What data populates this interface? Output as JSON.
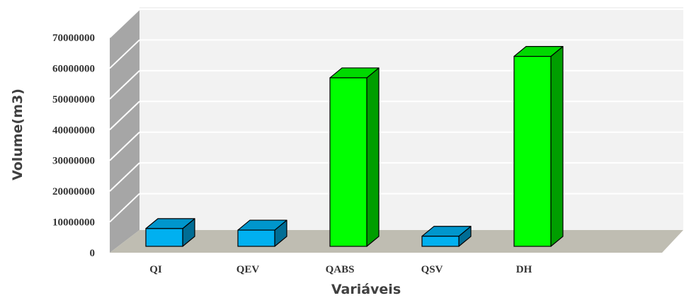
{
  "chart_data": {
    "type": "bar",
    "style": "3d-column",
    "title": "",
    "xlabel": "Variáveis",
    "ylabel": "Volume(m3)",
    "categories": [
      "QI",
      "QEV",
      "QABS",
      "QSV",
      "DH"
    ],
    "values": [
      5800000,
      5300000,
      55000000,
      3300000,
      62000000
    ],
    "bar_colors": [
      "#00b0f0",
      "#00b0f0",
      "#00ff00",
      "#00b0f0",
      "#00ff00"
    ],
    "yticks": [
      "0",
      "10000000",
      "20000000",
      "30000000",
      "40000000",
      "50000000",
      "60000000",
      "70000000"
    ],
    "ylim": [
      0,
      70000000
    ],
    "grid": true,
    "legend": "none",
    "colors": {
      "back_wall": "#f2f2f2",
      "side_wall": "#a6a6a6",
      "floor": "#bfbdb2",
      "gridline": "#ffffff"
    }
  }
}
